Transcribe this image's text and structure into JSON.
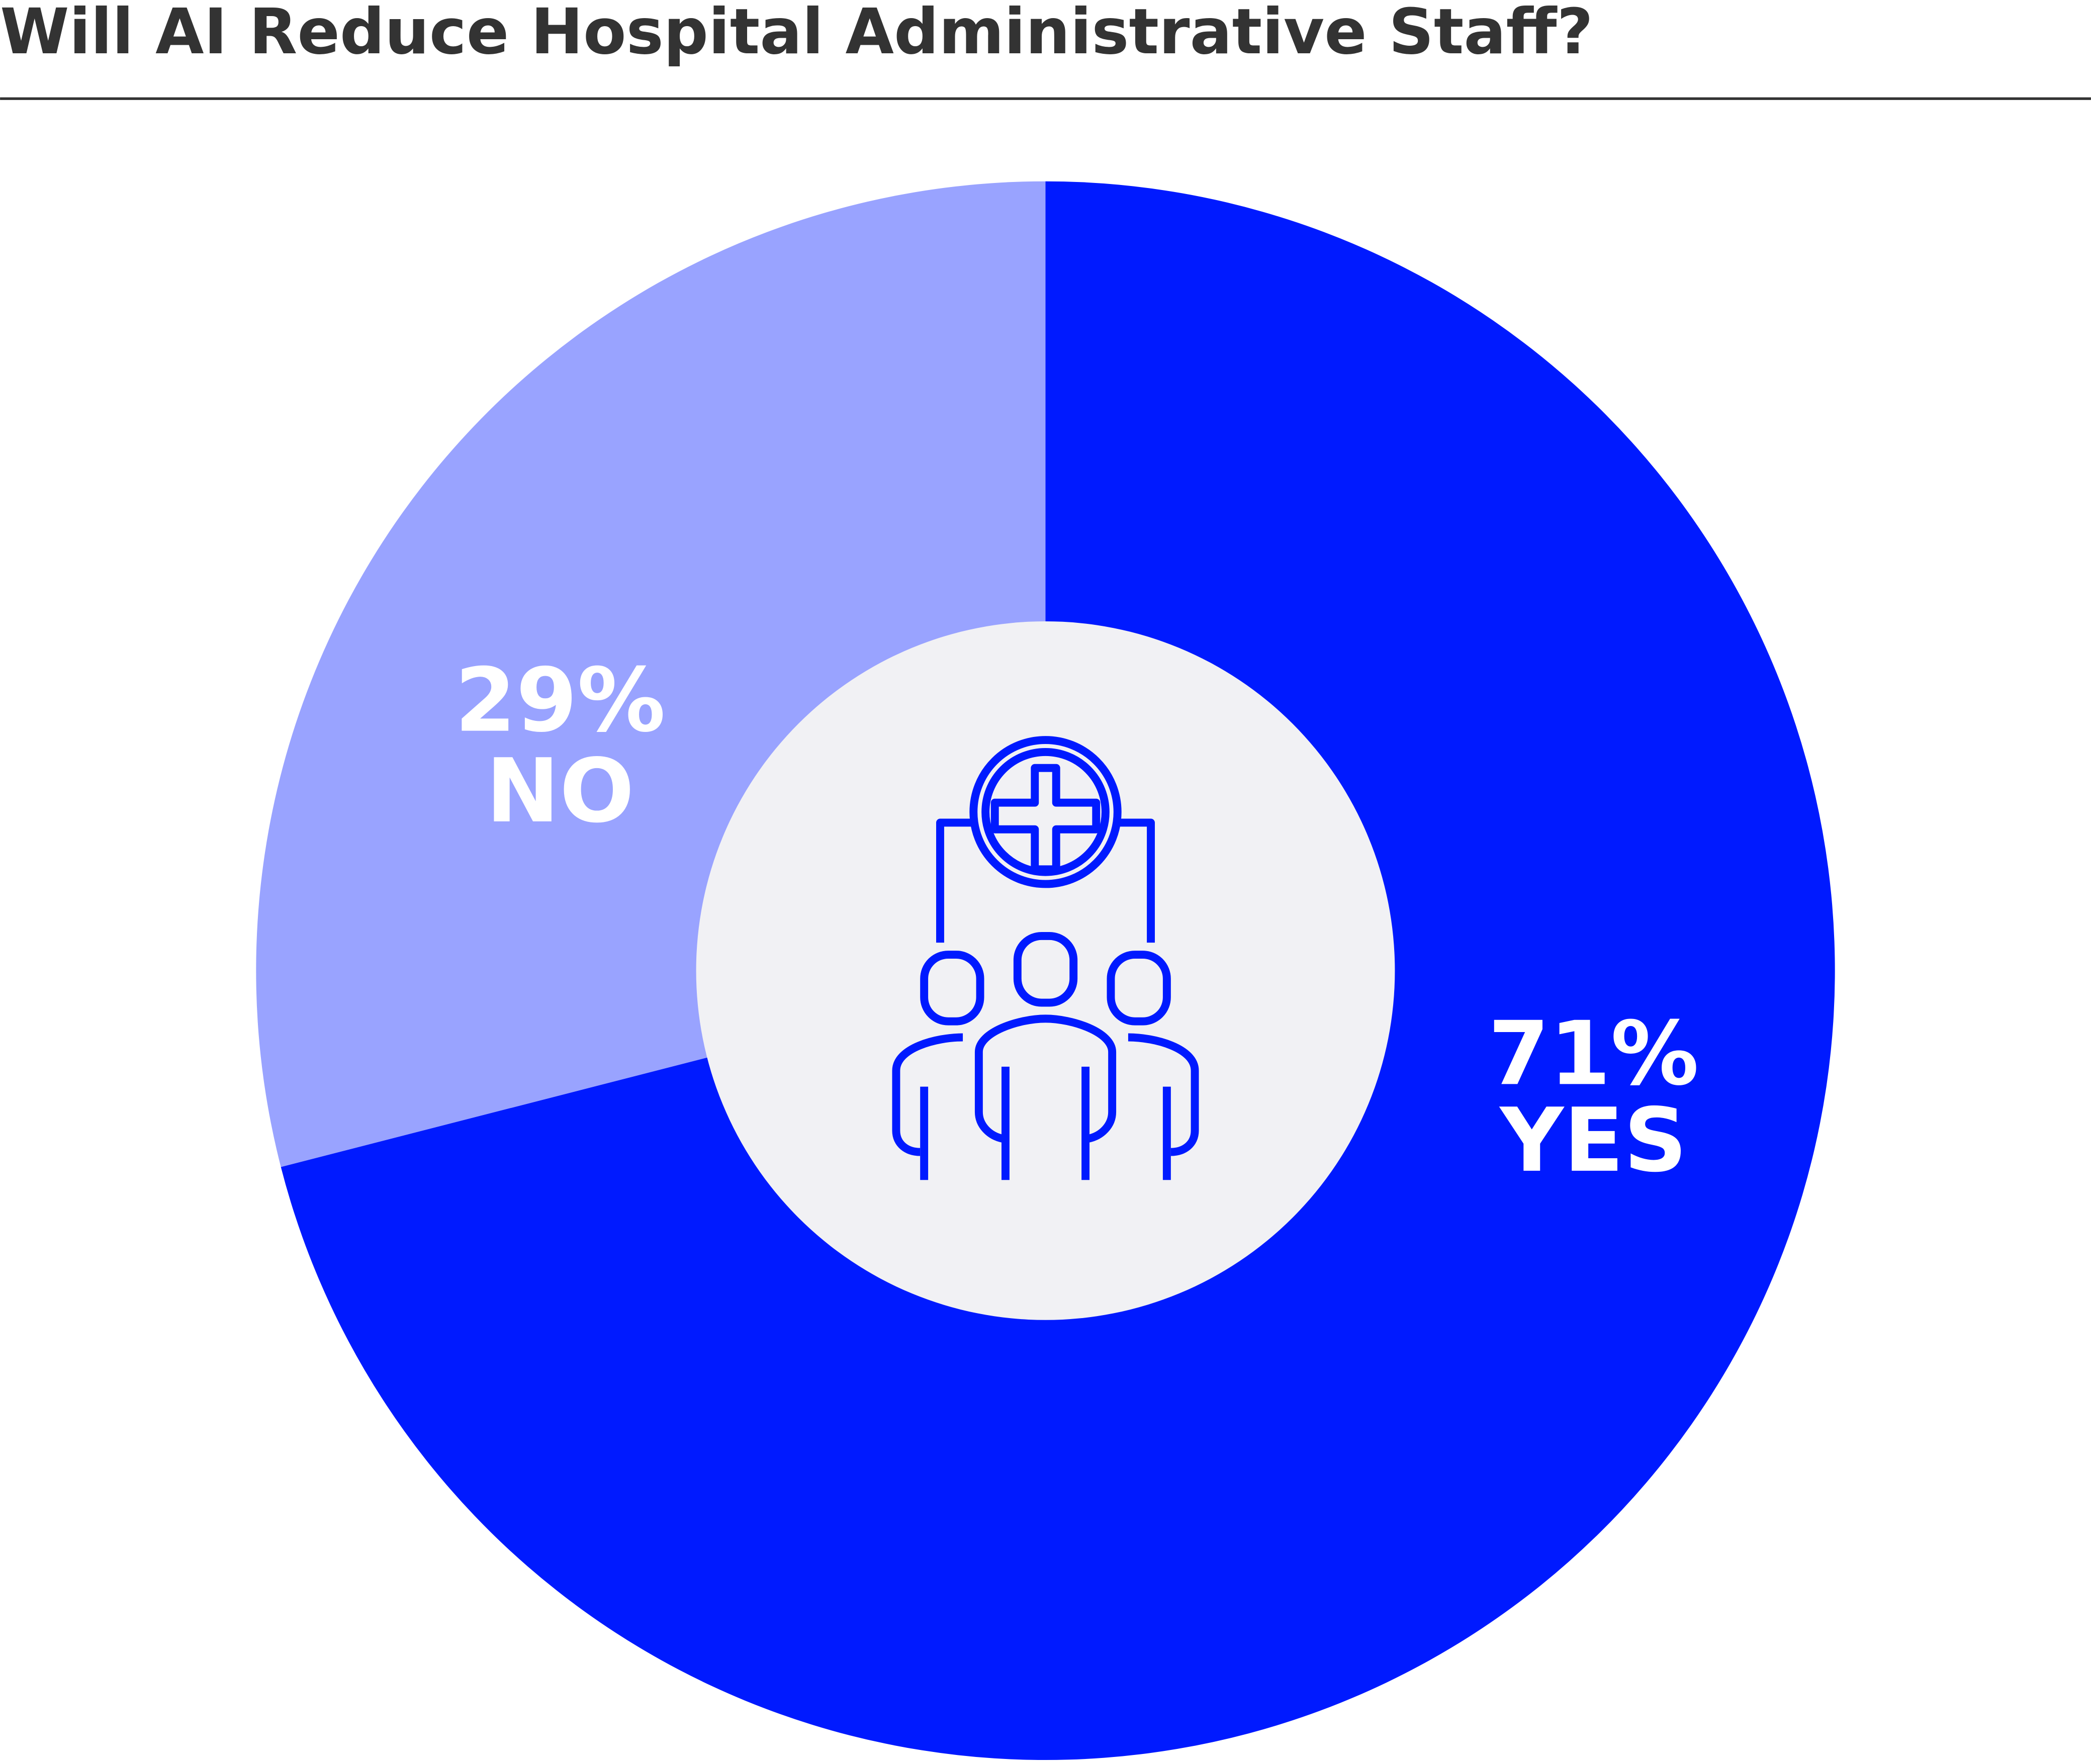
{
  "chart_data": {
    "type": "donut",
    "title": "Will AI Reduce Hospital Administrative Staff?",
    "categories": [
      "YES",
      "NO"
    ],
    "values": [
      71,
      29
    ],
    "value_labels": [
      "71%",
      "29%"
    ],
    "colors": [
      "#001aff",
      "#99a3ff"
    ]
  }
}
